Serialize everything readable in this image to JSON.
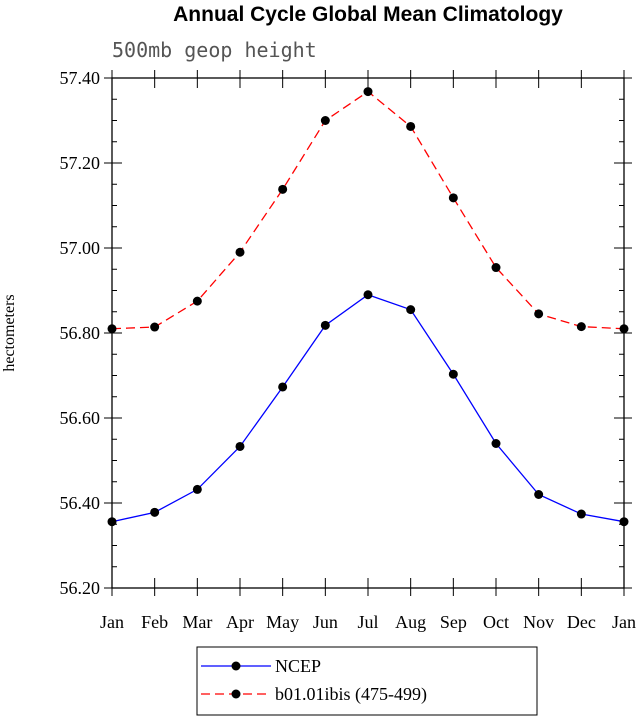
{
  "chart_data": {
    "type": "line",
    "title": "Annual Cycle Global Mean Climatology",
    "subtitle": "500mb geop height",
    "xlabel": "",
    "ylabel": "hectometers",
    "categories": [
      "Jan",
      "Feb",
      "Mar",
      "Apr",
      "May",
      "Jun",
      "Jul",
      "Aug",
      "Sep",
      "Oct",
      "Nov",
      "Dec",
      "Jan"
    ],
    "ylim": [
      56.2,
      57.4
    ],
    "yticks": [
      "56.20",
      "56.40",
      "56.60",
      "56.80",
      "57.00",
      "57.20",
      "57.40"
    ],
    "grid": false,
    "legend_position": "bottom-center",
    "series": [
      {
        "name": "NCEP",
        "color": "#0000ff",
        "line_style": "solid",
        "marker": "filled-circle",
        "values": [
          56.356,
          56.378,
          56.432,
          56.533,
          56.673,
          56.818,
          56.89,
          56.855,
          56.703,
          56.54,
          56.42,
          56.374,
          56.356
        ]
      },
      {
        "name": "b01.01ibis (475-499)",
        "color": "#ff0000",
        "line_style": "dashed",
        "marker": "filled-circle",
        "values": [
          56.81,
          56.814,
          56.875,
          56.99,
          57.138,
          57.3,
          57.368,
          57.286,
          57.118,
          56.954,
          56.845,
          56.815,
          56.81
        ]
      }
    ]
  }
}
